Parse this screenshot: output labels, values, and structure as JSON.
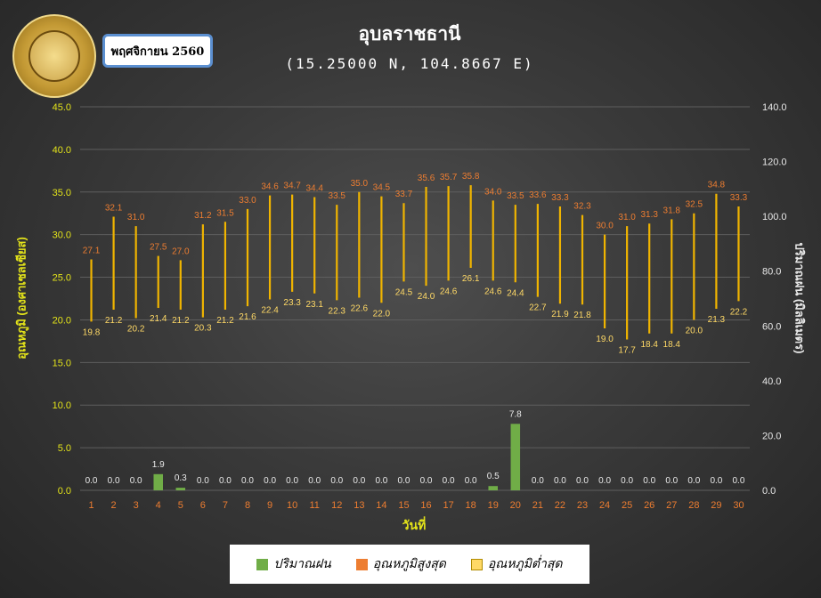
{
  "header": {
    "month_label": "พฤศจิกายน 2560",
    "title": "อุบลราชธานี",
    "subtitle": "(15.25000 N, 104.8667 E)"
  },
  "colors": {
    "rain": "#70ad47",
    "temp_max": "#ed7d31",
    "temp_min": "#ffd966",
    "bar_line": "#f0b400",
    "left_axis": "#e3e31a",
    "right_axis": "#e8e8e8",
    "x_ticks": "#ed7d31"
  },
  "chart_data": {
    "type": "bar",
    "title": "อุบลราชธานี",
    "subtitle": "(15.25000 N, 104.8667 E)",
    "xlabel": "วันที่",
    "ylabel": "อุณหภูมิ (องศาเซลเซียส)",
    "y2label": "ปริมาณฝน (มิลลิเมตร)",
    "ylim": [
      0,
      45
    ],
    "y2lim": [
      0,
      140
    ],
    "yticks": [
      "0.0",
      "5.0",
      "10.0",
      "15.0",
      "20.0",
      "25.0",
      "30.0",
      "35.0",
      "40.0",
      "45.0"
    ],
    "y2ticks": [
      "0.0",
      "20.0",
      "40.0",
      "60.0",
      "80.0",
      "100.0",
      "120.0",
      "140.0"
    ],
    "grid": true,
    "legend_position": "bottom",
    "categories": [
      "1",
      "2",
      "3",
      "4",
      "5",
      "6",
      "7",
      "8",
      "9",
      "10",
      "11",
      "12",
      "13",
      "14",
      "15",
      "16",
      "17",
      "18",
      "19",
      "20",
      "21",
      "22",
      "23",
      "24",
      "25",
      "26",
      "27",
      "28",
      "29",
      "30"
    ],
    "series": [
      {
        "name": "ปริมาณฝน",
        "axis": "left",
        "values": [
          0.0,
          0.0,
          0.0,
          1.9,
          0.3,
          0.0,
          0.0,
          0.0,
          0.0,
          0.0,
          0.0,
          0.0,
          0.0,
          0.0,
          0.0,
          0.0,
          0.0,
          0.0,
          0.5,
          7.8,
          0.0,
          0.0,
          0.0,
          0.0,
          0.0,
          0.0,
          0.0,
          0.0,
          0.0,
          0.0
        ],
        "labels": [
          "0.0",
          "0.0",
          "0.0",
          "1.9",
          "0.3",
          "0.0",
          "0.0",
          "0.0",
          "0.0",
          "0.0",
          "0.0",
          "0.0",
          "0.0",
          "0.0",
          "0.0",
          "0.0",
          "0.0",
          "0.0",
          "0.5",
          "7.8",
          "0.0",
          "0.0",
          "0.0",
          "0.0",
          "0.0",
          "0.0",
          "0.0",
          "0.0",
          "0.0",
          "0.0"
        ]
      },
      {
        "name": "อุณหภูมิสูงสุด",
        "axis": "left",
        "values": [
          27.1,
          32.1,
          31.0,
          27.5,
          27.0,
          31.2,
          31.5,
          33.0,
          34.6,
          34.7,
          34.4,
          33.5,
          35.0,
          34.5,
          33.7,
          35.6,
          35.7,
          35.8,
          34.0,
          33.5,
          33.6,
          33.3,
          32.3,
          30.0,
          31.0,
          31.3,
          31.8,
          32.5,
          34.8,
          33.3
        ],
        "labels": [
          "27.1",
          "32.1",
          "31.0",
          "27.5",
          "27.0",
          "31.2",
          "31.5",
          "33.0",
          "34.6",
          "34.7",
          "34.4",
          "33.5",
          "35.0",
          "34.5",
          "33.7",
          "35.6",
          "35.7",
          "35.8",
          "34.0",
          "33.5",
          "33.6",
          "33.3",
          "32.3",
          "30.0",
          "31.0",
          "31.3",
          "31.8",
          "32.5",
          "34.8",
          "33.3"
        ]
      },
      {
        "name": "อุณหภูมิต่ำสุด",
        "axis": "left",
        "values": [
          19.8,
          21.2,
          20.2,
          21.4,
          21.2,
          20.3,
          21.2,
          21.6,
          22.4,
          23.3,
          23.1,
          22.3,
          22.6,
          22.0,
          24.5,
          24.0,
          24.6,
          26.1,
          24.6,
          24.4,
          22.7,
          21.9,
          21.8,
          19.0,
          17.7,
          18.4,
          18.4,
          20.0,
          21.3,
          22.2
        ],
        "labels": [
          "19.8",
          "21.2",
          "20.2",
          "21.4",
          "21.2",
          "20.3",
          "21.2",
          "21.6",
          "22.4",
          "23.3",
          "23.1",
          "22.3",
          "22.6",
          "22.0",
          "24.5",
          "24.0",
          "24.6",
          "26.1",
          "24.6",
          "24.4",
          "22.7",
          "21.9",
          "21.8",
          "19.0",
          "17.7",
          "18.4",
          "18.4",
          "20.0",
          "21.3",
          "22.2"
        ]
      }
    ]
  },
  "legend": {
    "rain": "ปริมาณฝน",
    "temp_max": "อุณหภูมิสูงสุด",
    "temp_min": "อุณหภูมิต่ำสุด"
  }
}
